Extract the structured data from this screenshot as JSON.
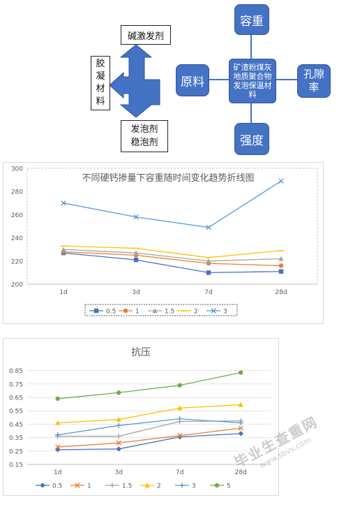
{
  "diagram": {
    "left_group": {
      "top_label": "碱激发剂",
      "side_label": [
        "胶",
        "凝",
        "材",
        "料"
      ],
      "bottom_label": [
        "发泡剂",
        "稳泡剂"
      ]
    },
    "right_group": {
      "center_label": [
        "矿渣粉煤灰",
        "地质聚合物",
        "发泡保温材",
        "料"
      ],
      "top": "容重",
      "left": "原料",
      "right": [
        "孔隙",
        "率"
      ],
      "bottom": "强度"
    },
    "colors": {
      "node": "#4472c4",
      "arrow": "#4472c4"
    }
  },
  "chart_data": [
    {
      "type": "line",
      "title": "不同硬钙掺量下容重随时间变化趋势折线图",
      "categories": [
        "1d",
        "3d",
        "7d",
        "28d"
      ],
      "ylim": [
        200,
        300
      ],
      "yticks": [
        "200",
        "220",
        "240",
        "260",
        "280",
        "300"
      ],
      "legend": "bottom",
      "grid": false,
      "series": [
        {
          "name": "0.5",
          "values": [
            227,
            221,
            210,
            211
          ],
          "color": "#4472c4",
          "marker": "square"
        },
        {
          "name": "1",
          "values": [
            228,
            225,
            218,
            216
          ],
          "color": "#ed7d31",
          "marker": "circle"
        },
        {
          "name": "1.5",
          "values": [
            230,
            227,
            220,
            222
          ],
          "color": "#a5a5a5",
          "marker": "triangle"
        },
        {
          "name": "2",
          "values": [
            233,
            231,
            223,
            229
          ],
          "color": "#ffc000",
          "marker": "dash"
        },
        {
          "name": "3",
          "values": [
            270,
            258,
            249,
            289
          ],
          "color": "#5b9bd5",
          "marker": "x"
        }
      ]
    },
    {
      "type": "line",
      "title": "抗压",
      "categories": [
        "1d",
        "3d",
        "7d",
        "28d"
      ],
      "ylim": [
        0.15,
        0.9
      ],
      "yticks": [
        "0.15",
        "0.25",
        "0.35",
        "0.45",
        "0.55",
        "0.65",
        "0.75",
        "0.85"
      ],
      "legend": "bottom",
      "grid": true,
      "series": [
        {
          "name": "0.5",
          "values": [
            0.26,
            0.265,
            0.355,
            0.38
          ],
          "color": "#4472c4",
          "marker": "diamond"
        },
        {
          "name": "1",
          "values": [
            0.28,
            0.31,
            0.365,
            0.42
          ],
          "color": "#ed7d31",
          "marker": "x"
        },
        {
          "name": "1.5",
          "values": [
            0.36,
            0.36,
            0.47,
            0.475
          ],
          "color": "#a5a5a5",
          "marker": "plus"
        },
        {
          "name": "2",
          "values": [
            0.46,
            0.485,
            0.57,
            0.595
          ],
          "color": "#ffc000",
          "marker": "triangle"
        },
        {
          "name": "3",
          "values": [
            0.37,
            0.44,
            0.49,
            0.46
          ],
          "color": "#5b9bd5",
          "marker": "plus"
        },
        {
          "name": "5",
          "values": [
            0.64,
            0.685,
            0.74,
            0.835
          ],
          "color": "#70ad47",
          "marker": "circle"
        }
      ]
    }
  ],
  "watermark": {
    "main": "毕业生查重网",
    "url": "www.sbvv.com"
  }
}
